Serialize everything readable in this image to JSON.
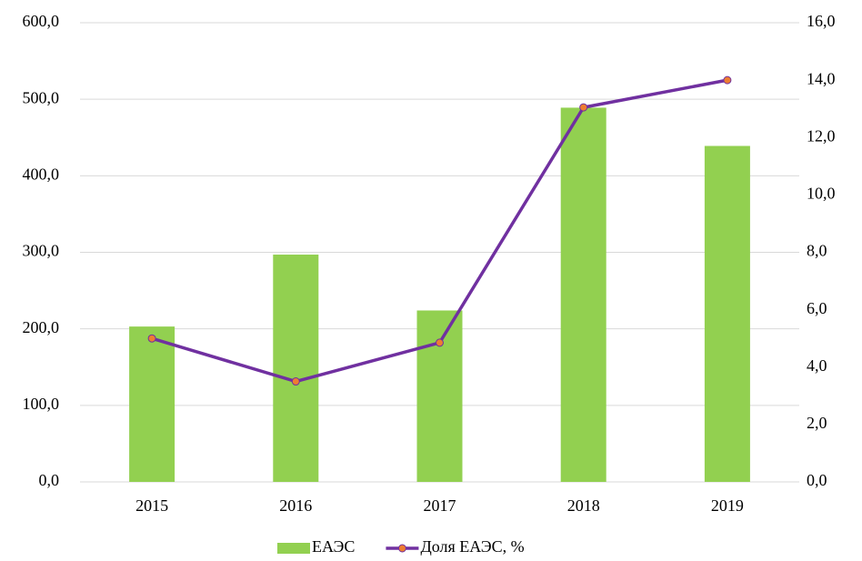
{
  "chart_data": {
    "type": "bar",
    "categories": [
      "2015",
      "2016",
      "2017",
      "2018",
      "2019"
    ],
    "series": [
      {
        "name": "ЕАЭС",
        "color": "#92d050",
        "values": [
          203,
          297,
          224,
          489,
          439
        ]
      },
      {
        "name": "Доля ЕАЭС, %",
        "color": "#7030a0",
        "type": "line",
        "axis": "y2",
        "marker_color": "#ed7d31",
        "values": [
          5.0,
          3.5,
          4.85,
          13.05,
          14.0
        ]
      }
    ],
    "ylim": [
      0,
      600
    ],
    "yticks": [
      {
        "value": 0,
        "label": "0,0"
      },
      {
        "value": 100,
        "label": "100,0"
      },
      {
        "value": 200,
        "label": "200,0"
      },
      {
        "value": 300,
        "label": "300,0"
      },
      {
        "value": 400,
        "label": "400,0"
      },
      {
        "value": 500,
        "label": "500,0"
      },
      {
        "value": 600,
        "label": "600,0"
      }
    ],
    "y2lim": [
      0,
      16
    ],
    "y2ticks": [
      {
        "value": 0,
        "label": "0,0"
      },
      {
        "value": 2,
        "label": "2,0"
      },
      {
        "value": 4,
        "label": "4,0"
      },
      {
        "value": 6,
        "label": "6,0"
      },
      {
        "value": 8,
        "label": "8,0"
      },
      {
        "value": 10,
        "label": "10,0"
      },
      {
        "value": 12,
        "label": "12,0"
      },
      {
        "value": 14,
        "label": "14,0"
      },
      {
        "value": 16,
        "label": "16,0"
      }
    ],
    "grid": true,
    "legend": "bottom"
  }
}
